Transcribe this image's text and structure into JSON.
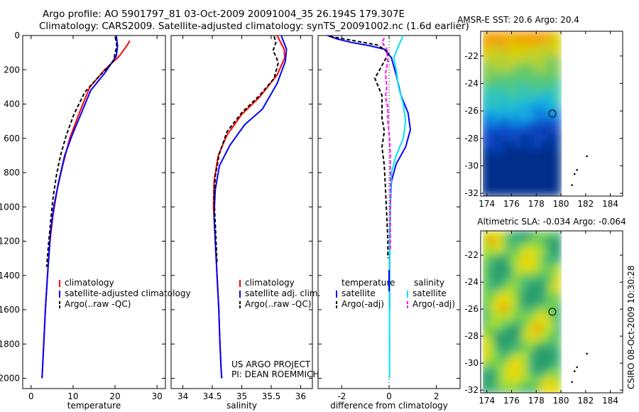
{
  "header": {
    "line1": "Argo profile: AO 5901797_81 03-Oct-2009 20091004_35 26.194S 179.307E",
    "line2": "Climatology: CARS2009. Satellite-adjusted climatology: synTS_20091002.nc (1.6d earlier)"
  },
  "side_label": "CSIRO 08-Oct-2009 10:30:28",
  "map_titles": {
    "sst": "AMSR-E SST: 20.6 Argo: 20.4",
    "sla": "Altimetric SLA: -0.034 Argo: -0.064"
  },
  "credit": {
    "line1": "US ARGO PROJECT",
    "line2": "PI: DEAN ROEMMICH"
  },
  "colors": {
    "climatology": "#ff0000",
    "satellite": "#0000ff",
    "argo": "#000000",
    "salinity_satellite": "#00e5ee",
    "salinity_argo": "#ff00ff"
  },
  "chart_data": [
    {
      "type": "line",
      "xlabel": "temperature",
      "xlim": [
        -2,
        32
      ],
      "xticks": [
        0,
        10,
        20,
        30
      ],
      "ylim": [
        2060,
        0
      ],
      "yticks": [
        0,
        200,
        400,
        600,
        800,
        1000,
        1200,
        1400,
        1600,
        1800,
        2000
      ],
      "legend": [
        "climatology",
        "satellite-adjusted climatology",
        "Argo(..raw -QC)"
      ],
      "series": [
        {
          "name": "climatology",
          "color": "#ff0000",
          "dash": "",
          "points": [
            [
              23.5,
              30
            ],
            [
              22.8,
              60
            ],
            [
              21,
              120
            ],
            [
              17.5,
              200
            ],
            [
              14,
              300
            ],
            [
              11.5,
              450
            ],
            [
              9.2,
              600
            ],
            [
              7.5,
              760
            ],
            [
              6.2,
              900
            ],
            [
              5.2,
              1050
            ],
            [
              4.5,
              1200
            ],
            [
              3.9,
              1400
            ],
            [
              3.4,
              1600
            ],
            [
              3.0,
              1800
            ],
            [
              2.7,
              1950
            ],
            [
              2.6,
              2000
            ]
          ]
        },
        {
          "name": "satellite-adjusted climatology",
          "color": "#0000ff",
          "dash": "",
          "points": [
            [
              20.3,
              0
            ],
            [
              20.6,
              60
            ],
            [
              20.3,
              120
            ],
            [
              17.5,
              220
            ],
            [
              14.2,
              320
            ],
            [
              12,
              450
            ],
            [
              9.8,
              580
            ],
            [
              8,
              700
            ],
            [
              6.6,
              850
            ],
            [
              5.4,
              1000
            ],
            [
              4.6,
              1150
            ],
            [
              3.9,
              1400
            ],
            [
              3.4,
              1600
            ],
            [
              3.0,
              1800
            ],
            [
              2.7,
              1950
            ],
            [
              2.6,
              2000
            ]
          ]
        },
        {
          "name": "Argo(..raw -QC)",
          "color": "#000000",
          "dash": "5,3",
          "points": [
            [
              20.1,
              10
            ],
            [
              20.4,
              60
            ],
            [
              19.6,
              150
            ],
            [
              16.5,
              230
            ],
            [
              12.8,
              330
            ],
            [
              10.2,
              460
            ],
            [
              8.4,
              580
            ],
            [
              7,
              700
            ],
            [
              6,
              820
            ],
            [
              5.2,
              950
            ],
            [
              4.8,
              1050
            ],
            [
              4.2,
              1200
            ],
            [
              3.7,
              1350
            ]
          ]
        }
      ]
    },
    {
      "type": "line",
      "xlabel": "salinity",
      "xlim": [
        33.8,
        36.2
      ],
      "xticks": [
        34,
        34.5,
        35,
        35.5,
        36
      ],
      "ylim": [
        2060,
        0
      ],
      "legend": [
        "climatology",
        "satellite adj. clim.",
        "Argo(..raw -QC)"
      ],
      "series": [
        {
          "name": "climatology",
          "color": "#ff0000",
          "dash": "",
          "points": [
            [
              35.6,
              0
            ],
            [
              35.72,
              80
            ],
            [
              35.73,
              130
            ],
            [
              35.6,
              230
            ],
            [
              35.3,
              360
            ],
            [
              35.0,
              460
            ],
            [
              34.75,
              580
            ],
            [
              34.6,
              700
            ],
            [
              34.53,
              850
            ],
            [
              34.52,
              1000
            ],
            [
              34.55,
              1200
            ],
            [
              34.58,
              1400
            ],
            [
              34.61,
              1600
            ],
            [
              34.63,
              1800
            ],
            [
              34.65,
              1950
            ],
            [
              34.66,
              2000
            ]
          ]
        },
        {
          "name": "satellite adj. clim.",
          "color": "#0000ff",
          "dash": "",
          "points": [
            [
              35.67,
              0
            ],
            [
              35.76,
              80
            ],
            [
              35.74,
              150
            ],
            [
              35.6,
              280
            ],
            [
              35.35,
              430
            ],
            [
              35.05,
              520
            ],
            [
              34.8,
              640
            ],
            [
              34.62,
              760
            ],
            [
              34.55,
              900
            ],
            [
              34.53,
              1050
            ],
            [
              34.55,
              1200
            ],
            [
              34.58,
              1400
            ],
            [
              34.61,
              1600
            ],
            [
              34.63,
              1800
            ],
            [
              34.65,
              1950
            ],
            [
              34.66,
              2000
            ]
          ]
        },
        {
          "name": "Argo(..raw -QC)",
          "color": "#000000",
          "dash": "5,3",
          "points": [
            [
              35.55,
              5
            ],
            [
              35.58,
              40
            ],
            [
              35.53,
              90
            ],
            [
              35.58,
              120
            ],
            [
              35.62,
              160
            ],
            [
              35.55,
              250
            ],
            [
              35.3,
              350
            ],
            [
              35.0,
              450
            ],
            [
              34.75,
              560
            ],
            [
              34.62,
              690
            ],
            [
              34.55,
              820
            ],
            [
              34.53,
              950
            ],
            [
              34.55,
              1100
            ],
            [
              34.57,
              1250
            ],
            [
              34.58,
              1330
            ]
          ]
        }
      ]
    },
    {
      "type": "line",
      "xlabel": "difference from climatology",
      "xlim": [
        -3,
        3
      ],
      "xticks": [
        -2,
        0,
        2
      ],
      "ylim": [
        2060,
        0
      ],
      "legend_groups": {
        "temperature": [
          "satellite",
          "Argo(-adj)"
        ],
        "salinity": [
          "satellite",
          "Argo(-adj)"
        ]
      },
      "series": [
        {
          "name": "satellite",
          "group": "temperature",
          "color": "#0000ff",
          "dash": "",
          "points": [
            [
              -2.6,
              0
            ],
            [
              -2.2,
              20
            ],
            [
              -1.6,
              40
            ],
            [
              -0.8,
              60
            ],
            [
              -0.2,
              80
            ],
            [
              0.1,
              130
            ],
            [
              0.3,
              230
            ],
            [
              0.5,
              350
            ],
            [
              0.8,
              450
            ],
            [
              0.9,
              550
            ],
            [
              0.7,
              650
            ],
            [
              0.3,
              750
            ],
            [
              0.1,
              850
            ],
            [
              0.05,
              1000
            ],
            [
              0.03,
              1200
            ],
            [
              0.02,
              1400
            ],
            [
              0.02,
              1600
            ]
          ]
        },
        {
          "name": "Argo(-adj)",
          "group": "temperature",
          "color": "#000000",
          "dash": "5,3",
          "points": [
            [
              -2.5,
              5
            ],
            [
              -1.5,
              30
            ],
            [
              -0.5,
              55
            ],
            [
              0.0,
              100
            ],
            [
              -0.2,
              150
            ],
            [
              -0.6,
              250
            ],
            [
              -0.3,
              350
            ],
            [
              -0.3,
              420
            ],
            [
              -0.3,
              480
            ],
            [
              -0.2,
              560
            ],
            [
              -0.3,
              650
            ],
            [
              -0.2,
              760
            ],
            [
              -0.15,
              900
            ],
            [
              -0.1,
              1050
            ],
            [
              -0.05,
              1200
            ],
            [
              -0.05,
              1300
            ]
          ]
        },
        {
          "name": "satellite",
          "group": "salinity",
          "color": "#00e5ee",
          "dash": "",
          "points": [
            [
              0.6,
              0
            ],
            [
              0.4,
              60
            ],
            [
              0.2,
              130
            ],
            [
              0.3,
              200
            ],
            [
              0.4,
              300
            ],
            [
              0.6,
              400
            ],
            [
              0.7,
              500
            ],
            [
              0.6,
              600
            ],
            [
              0.3,
              700
            ],
            [
              0.1,
              800
            ],
            [
              0.05,
              1000
            ],
            [
              0.03,
              1200
            ],
            [
              0.02,
              1500
            ],
            [
              0.02,
              1800
            ],
            [
              0.02,
              2000
            ]
          ]
        },
        {
          "name": "Argo(-adj)",
          "group": "salinity",
          "color": "#ff00ff",
          "dash": "5,3",
          "points": [
            [
              -0.2,
              15
            ],
            [
              -0.3,
              40
            ],
            [
              -0.1,
              80
            ],
            [
              -0.05,
              150
            ],
            [
              -0.15,
              220
            ],
            [
              -0.1,
              300
            ],
            [
              -0.15,
              360
            ],
            [
              -0.05,
              420
            ],
            [
              -0.05,
              500
            ],
            [
              0.02,
              600
            ],
            [
              0.05,
              700
            ],
            [
              0.05,
              850
            ],
            [
              0.05,
              1000
            ],
            [
              0.05,
              1150
            ],
            [
              0.05,
              1250
            ]
          ]
        }
      ]
    },
    {
      "type": "heatmap",
      "title": "AMSR-E SST: 20.6 Argo: 20.4",
      "xlim": [
        173.5,
        185
      ],
      "ylim": [
        -32.2,
        -20.2
      ],
      "xticks": [
        174,
        176,
        178,
        180,
        182,
        184
      ],
      "yticks": [
        -22,
        -24,
        -26,
        -28,
        -30,
        -32
      ],
      "data_xrange": [
        173.5,
        180
      ],
      "argo_position": {
        "lon": 179.307,
        "lat": -26.194
      }
    },
    {
      "type": "heatmap",
      "title": "Altimetric SLA: -0.034 Argo: -0.064",
      "xlim": [
        173.5,
        185
      ],
      "ylim": [
        -32.2,
        -20.2
      ],
      "xticks": [
        174,
        176,
        178,
        180,
        182,
        184
      ],
      "yticks": [
        -22,
        -24,
        -26,
        -28,
        -30,
        -32
      ],
      "data_xrange": [
        173.5,
        180
      ],
      "argo_position": {
        "lon": 179.307,
        "lat": -26.194
      }
    }
  ]
}
